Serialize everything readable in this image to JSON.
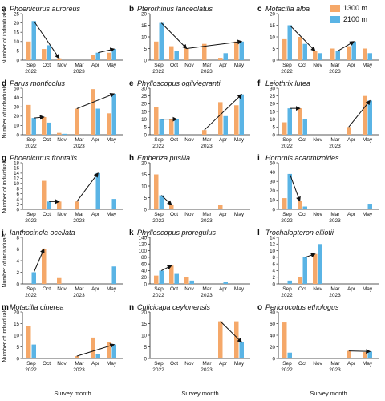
{
  "figure": {
    "ylabel": "Number of individuals",
    "xlabel": "Survey month",
    "months": [
      "Sep",
      "Oct",
      "Nov",
      "Mar",
      "Apr",
      "May"
    ],
    "years": [
      "2022",
      "2023"
    ],
    "colors": {
      "c1300": "#f5a869",
      "c2100": "#5ab4e5",
      "arrow": "#111111"
    }
  },
  "legend": {
    "items": [
      "1300 m",
      "2100 m"
    ]
  },
  "chart_data": [
    {
      "type": "bar",
      "panel": "a",
      "title": "Phoenicurus auroreus",
      "ylim": [
        0,
        25
      ],
      "ticks": [
        0,
        5,
        10,
        15,
        20,
        25
      ],
      "categories": [
        "Sep",
        "Oct",
        "Nov",
        "Mar",
        "Apr",
        "May"
      ],
      "series": [
        {
          "name": "1300 m",
          "values": [
            10,
            6,
            1,
            0,
            3,
            4
          ]
        },
        {
          "name": "2100 m",
          "values": [
            21,
            8,
            0,
            0,
            4,
            6
          ]
        }
      ],
      "arrows": [
        {
          "from": [
            "Sep",
            "2100 m"
          ],
          "to": [
            "Nov",
            "1300 m"
          ]
        },
        {
          "from": [
            "Apr",
            "2100 m"
          ],
          "to": [
            "May",
            "2100 m"
          ]
        }
      ]
    },
    {
      "type": "bar",
      "panel": "b",
      "title": "Pterorhinus lanceolatus",
      "ylim": [
        0,
        20
      ],
      "ticks": [
        0,
        5,
        10,
        15,
        20
      ],
      "categories": [
        "Sep",
        "Oct",
        "Nov",
        "Mar",
        "Apr",
        "May"
      ],
      "series": [
        {
          "name": "1300 m",
          "values": [
            8,
            6,
            5,
            7,
            1,
            8
          ]
        },
        {
          "name": "2100 m",
          "values": [
            16,
            4,
            0,
            0,
            3,
            8
          ]
        }
      ],
      "arrows": [
        {
          "from": [
            "Sep",
            "2100 m"
          ],
          "to": [
            "Nov",
            "1300 m"
          ]
        },
        {
          "from": [
            "Nov",
            "1300 m"
          ],
          "to": [
            "May",
            "2100 m"
          ]
        }
      ]
    },
    {
      "type": "bar",
      "panel": "c",
      "title": "Motacilla alba",
      "ylim": [
        0,
        20
      ],
      "ticks": [
        0,
        5,
        10,
        15,
        20
      ],
      "categories": [
        "Sep",
        "Oct",
        "Nov",
        "Mar",
        "Apr",
        "May"
      ],
      "series": [
        {
          "name": "1300 m",
          "values": [
            9,
            10,
            4,
            5,
            6,
            5
          ]
        },
        {
          "name": "2100 m",
          "values": [
            15,
            7,
            3,
            4,
            8,
            3
          ]
        }
      ],
      "arrows": [
        {
          "from": [
            "Sep",
            "2100 m"
          ],
          "to": [
            "Nov",
            "1300 m"
          ]
        },
        {
          "from": [
            "Mar",
            "2100 m"
          ],
          "to": [
            "Apr",
            "2100 m"
          ]
        }
      ]
    },
    {
      "type": "bar",
      "panel": "d",
      "title": "Parus monticolus",
      "ylim": [
        0,
        50
      ],
      "ticks": [
        0,
        10,
        20,
        30,
        40,
        50
      ],
      "categories": [
        "Sep",
        "Oct",
        "Nov",
        "Mar",
        "Apr",
        "May"
      ],
      "series": [
        {
          "name": "1300 m",
          "values": [
            32,
            19,
            2,
            28,
            49,
            23
          ]
        },
        {
          "name": "2100 m",
          "values": [
            18,
            13,
            1,
            0,
            28,
            44
          ]
        }
      ],
      "arrows": [
        {
          "from": [
            "Sep",
            "2100 m"
          ],
          "to": [
            "Oct",
            "1300 m"
          ]
        },
        {
          "from": [
            "Mar",
            "1300 m"
          ],
          "to": [
            "May",
            "2100 m"
          ]
        }
      ]
    },
    {
      "type": "bar",
      "panel": "e",
      "title": "Phylloscopus ogilviegranti",
      "ylim": [
        0,
        30
      ],
      "ticks": [
        0,
        5,
        10,
        15,
        20,
        25,
        30
      ],
      "categories": [
        "Sep",
        "Oct",
        "Nov",
        "Mar",
        "Apr",
        "May"
      ],
      "series": [
        {
          "name": "1300 m",
          "values": [
            18,
            10,
            0,
            3,
            21,
            19
          ]
        },
        {
          "name": "2100 m",
          "values": [
            10,
            10,
            0,
            0,
            12,
            26
          ]
        }
      ],
      "arrows": [
        {
          "from": [
            "Sep",
            "2100 m"
          ],
          "to": [
            "Oct",
            "2100 m"
          ]
        },
        {
          "from": [
            "Mar",
            "1300 m"
          ],
          "to": [
            "May",
            "2100 m"
          ]
        }
      ]
    },
    {
      "type": "bar",
      "panel": "f",
      "title": "Leiothrix lutea",
      "ylim": [
        0,
        30
      ],
      "ticks": [
        0,
        5,
        10,
        15,
        20,
        25,
        30
      ],
      "categories": [
        "Sep",
        "Oct",
        "Nov",
        "Mar",
        "Apr",
        "May"
      ],
      "series": [
        {
          "name": "1300 m",
          "values": [
            8,
            17,
            0,
            0,
            5,
            25
          ]
        },
        {
          "name": "2100 m",
          "values": [
            17,
            10,
            0,
            0,
            0,
            22
          ]
        }
      ],
      "arrows": [
        {
          "from": [
            "Sep",
            "2100 m"
          ],
          "to": [
            "Oct",
            "1300 m"
          ]
        },
        {
          "from": [
            "Apr",
            "1300 m"
          ],
          "to": [
            "May",
            "2100 m"
          ]
        }
      ]
    },
    {
      "type": "bar",
      "panel": "g",
      "title": "Phoenicurus frontalis",
      "ylim": [
        0,
        18
      ],
      "ticks": [
        0,
        2,
        4,
        6,
        8,
        10,
        12,
        14,
        16,
        18
      ],
      "categories": [
        "Sep",
        "Oct",
        "Nov",
        "Mar",
        "Apr",
        "May"
      ],
      "series": [
        {
          "name": "1300 m",
          "values": [
            0,
            11,
            3,
            3,
            0,
            0
          ]
        },
        {
          "name": "2100 m",
          "values": [
            0,
            3,
            0,
            0,
            14,
            4
          ]
        }
      ],
      "arrows": [
        {
          "from": [
            "Oct",
            "2100 m"
          ],
          "to": [
            "Nov",
            "1300 m"
          ]
        },
        {
          "from": [
            "Mar",
            "1300 m"
          ],
          "to": [
            "Apr",
            "2100 m"
          ]
        }
      ]
    },
    {
      "type": "bar",
      "panel": "h",
      "title": "Emberiza pusilla",
      "ylim": [
        0,
        20
      ],
      "ticks": [
        0,
        5,
        10,
        15,
        20
      ],
      "categories": [
        "Sep",
        "Oct",
        "Nov",
        "Mar",
        "Apr",
        "May"
      ],
      "series": [
        {
          "name": "1300 m",
          "values": [
            15,
            2,
            0,
            0,
            2,
            0
          ]
        },
        {
          "name": "2100 m",
          "values": [
            6,
            0,
            0,
            0,
            0,
            0
          ]
        }
      ],
      "arrows": [
        {
          "from": [
            "Sep",
            "2100 m"
          ],
          "to": [
            "Oct",
            "1300 m"
          ]
        }
      ]
    },
    {
      "type": "bar",
      "panel": "i",
      "title": "Horornis acanthizoides",
      "ylim": [
        0,
        50
      ],
      "ticks": [
        0,
        10,
        20,
        30,
        40,
        50
      ],
      "categories": [
        "Sep",
        "Oct",
        "Nov",
        "Mar",
        "Apr",
        "May"
      ],
      "series": [
        {
          "name": "1300 m",
          "values": [
            12,
            9,
            0,
            0,
            0,
            0
          ]
        },
        {
          "name": "2100 m",
          "values": [
            38,
            3,
            0,
            0,
            0,
            6
          ]
        }
      ],
      "arrows": [
        {
          "from": [
            "Sep",
            "2100 m"
          ],
          "to": [
            "Oct",
            "1300 m"
          ]
        }
      ]
    },
    {
      "type": "bar",
      "panel": "j",
      "title": "Ianthocincla ocellata",
      "ylim": [
        0,
        8
      ],
      "ticks": [
        0,
        2,
        4,
        6,
        8
      ],
      "categories": [
        "Sep",
        "Oct",
        "Nov",
        "Mar",
        "Apr",
        "May"
      ],
      "series": [
        {
          "name": "1300 m",
          "values": [
            0,
            6,
            1,
            0,
            0,
            0
          ]
        },
        {
          "name": "2100 m",
          "values": [
            2,
            0,
            0,
            0,
            0,
            3
          ]
        }
      ],
      "arrows": [
        {
          "from": [
            "Sep",
            "2100 m"
          ],
          "to": [
            "Oct",
            "1300 m"
          ]
        }
      ]
    },
    {
      "type": "bar",
      "panel": "k",
      "title": "Phylloscopus proregulus",
      "ylim": [
        0,
        140
      ],
      "ticks": [
        0,
        20,
        40,
        60,
        80,
        100,
        120,
        140
      ],
      "categories": [
        "Sep",
        "Oct",
        "Nov",
        "Mar",
        "Apr",
        "May"
      ],
      "series": [
        {
          "name": "1300 m",
          "values": [
            25,
            55,
            20,
            0,
            0,
            0
          ]
        },
        {
          "name": "2100 m",
          "values": [
            40,
            30,
            10,
            0,
            5,
            0
          ]
        }
      ],
      "arrows": [
        {
          "from": [
            "Sep",
            "2100 m"
          ],
          "to": [
            "Oct",
            "1300 m"
          ]
        }
      ]
    },
    {
      "type": "bar",
      "panel": "l",
      "title": "Trochalopteron elliotii",
      "ylim": [
        0,
        14
      ],
      "ticks": [
        0,
        2,
        4,
        6,
        8,
        10,
        12,
        14
      ],
      "categories": [
        "Sep",
        "Oct",
        "Nov",
        "Mar",
        "Apr",
        "May"
      ],
      "series": [
        {
          "name": "1300 m",
          "values": [
            0,
            2,
            9,
            0,
            0,
            0
          ]
        },
        {
          "name": "2100 m",
          "values": [
            1,
            8,
            12,
            0,
            0,
            0
          ]
        }
      ],
      "arrows": [
        {
          "from": [
            "Oct",
            "2100 m"
          ],
          "to": [
            "Nov",
            "1300 m"
          ]
        }
      ]
    },
    {
      "type": "bar",
      "panel": "m",
      "title": "Motacilla cinerea",
      "ylim": [
        0,
        20
      ],
      "ticks": [
        0,
        5,
        10,
        15,
        20
      ],
      "categories": [
        "Sep",
        "Oct",
        "Nov",
        "Mar",
        "Apr",
        "May"
      ],
      "series": [
        {
          "name": "1300 m",
          "values": [
            14,
            0,
            0,
            1,
            9,
            7
          ]
        },
        {
          "name": "2100 m",
          "values": [
            6,
            0,
            0,
            0,
            2,
            6
          ]
        }
      ],
      "arrows": [
        {
          "from": [
            "Mar",
            "1300 m"
          ],
          "to": [
            "May",
            "2100 m"
          ]
        }
      ]
    },
    {
      "type": "bar",
      "panel": "n",
      "title": "Culicicapa ceylonensis",
      "ylim": [
        0,
        20
      ],
      "ticks": [
        0,
        5,
        10,
        15,
        20
      ],
      "categories": [
        "Sep",
        "Oct",
        "Nov",
        "Mar",
        "Apr",
        "May"
      ],
      "series": [
        {
          "name": "1300 m",
          "values": [
            0,
            0,
            0,
            0,
            16,
            16
          ]
        },
        {
          "name": "2100 m",
          "values": [
            0,
            0,
            0,
            0,
            0,
            7
          ]
        }
      ],
      "arrows": [
        {
          "from": [
            "Apr",
            "1300 m"
          ],
          "to": [
            "May",
            "2100 m"
          ]
        }
      ]
    },
    {
      "type": "bar",
      "panel": "o",
      "title": "Pericrocotus ethologus",
      "ylim": [
        0,
        80
      ],
      "ticks": [
        0,
        20,
        40,
        60,
        80
      ],
      "categories": [
        "Sep",
        "Oct",
        "Nov",
        "Mar",
        "Apr",
        "May"
      ],
      "series": [
        {
          "name": "1300 m",
          "values": [
            62,
            0,
            0,
            0,
            13,
            11
          ]
        },
        {
          "name": "2100 m",
          "values": [
            10,
            0,
            0,
            0,
            0,
            12
          ]
        }
      ],
      "arrows": [
        {
          "from": [
            "Apr",
            "1300 m"
          ],
          "to": [
            "May",
            "2100 m"
          ]
        }
      ]
    }
  ]
}
